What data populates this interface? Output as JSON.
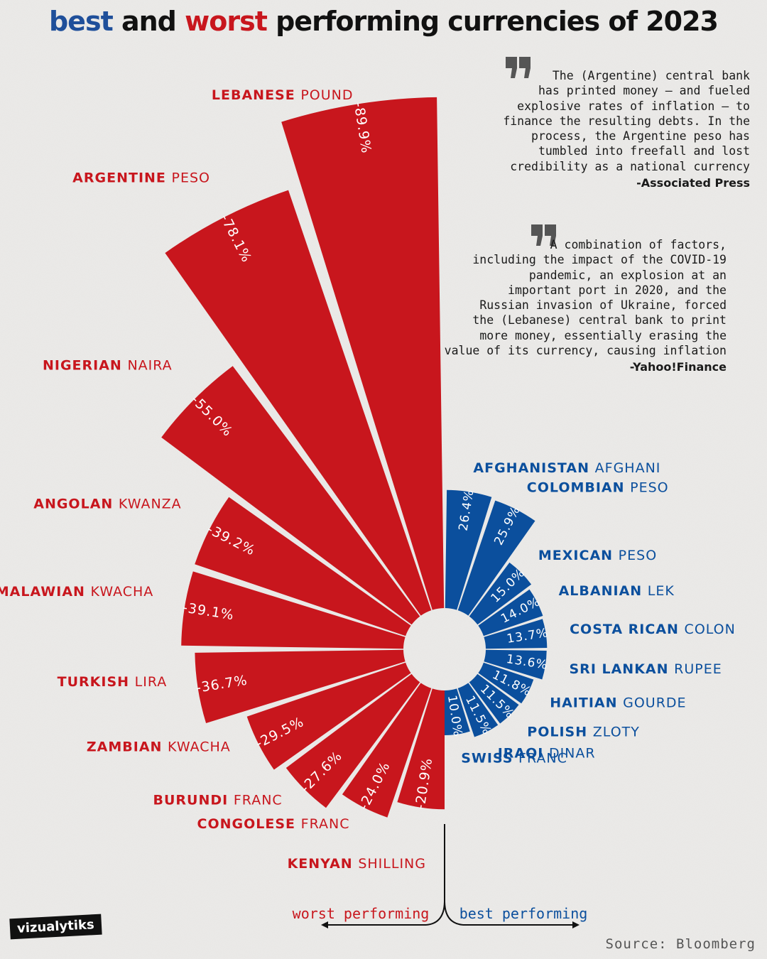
{
  "title": {
    "part_best": "best",
    "part_and": "and",
    "part_worst": "worst",
    "part_rest": "performing currencies of 2023"
  },
  "quotes": [
    {
      "lines": [
        "The (Argentine) central bank",
        "has printed money — and fueled",
        "explosive rates of inflation — to",
        "finance the resulting debts. In the",
        "process, the Argentine peso has",
        "tumbled into freefall and lost",
        "credibility as a national currency"
      ],
      "source": "-Associated Press"
    },
    {
      "lines": [
        "A combination of factors,",
        "including the impact of the COVID-19",
        "pandemic, an explosion at an",
        "important port in 2020, and the",
        "Russian invasion of Ukraine, forced",
        "the (Lebanese) central bank to print",
        "more money, essentially erasing the",
        "value of its currency, causing inflation"
      ],
      "source": "-Yahoo!Finance"
    }
  ],
  "axis_labels": {
    "worst": "worst performing",
    "best": "best performing"
  },
  "source": "Source: Bloomberg",
  "brand": "vizualytiks",
  "colors": {
    "worst": "#c8161d",
    "best": "#0b4f9d",
    "title_best": "#1f4f9a",
    "title_worst": "#c8161d",
    "background": "#ecebe9"
  },
  "chart_data": {
    "type": "bar",
    "style": "radial-semicircle",
    "unit": "%",
    "worst": [
      {
        "country": "LEBANESE",
        "currency": "POUND",
        "value": -89.9
      },
      {
        "country": "ARGENTINE",
        "currency": "PESO",
        "value": -78.1
      },
      {
        "country": "NIGERIAN",
        "currency": "NAIRA",
        "value": -55.0
      },
      {
        "country": "ANGOLAN",
        "currency": "KWANZA",
        "value": -39.2
      },
      {
        "country": "MALAWIAN",
        "currency": "KWACHA",
        "value": -39.1
      },
      {
        "country": "TURKISH",
        "currency": "LIRA",
        "value": -36.7
      },
      {
        "country": "ZAMBIAN",
        "currency": "KWACHA",
        "value": -29.5
      },
      {
        "country": "BURUNDI",
        "currency": "FRANC",
        "value": -27.6
      },
      {
        "country": "CONGOLESE",
        "currency": "FRANC",
        "value": -24.0
      },
      {
        "country": "KENYAN",
        "currency": "SHILLING",
        "value": -20.9
      }
    ],
    "best": [
      {
        "country": "AFGHANISTAN",
        "currency": "AFGHANI",
        "value": 26.4
      },
      {
        "country": "COLOMBIAN",
        "currency": "PESO",
        "value": 25.9
      },
      {
        "country": "MEXICAN",
        "currency": "PESO",
        "value": 15.0
      },
      {
        "country": "ALBANIAN",
        "currency": "LEK",
        "value": 14.0
      },
      {
        "country": "COSTA RICAN",
        "currency": "COLON",
        "value": 13.7
      },
      {
        "country": "SRI LANKAN",
        "currency": "RUPEE",
        "value": 13.6
      },
      {
        "country": "HAITIAN",
        "currency": "GOURDE",
        "value": 11.8
      },
      {
        "country": "POLISH",
        "currency": "ZLOTY",
        "value": 11.5
      },
      {
        "country": "IRAQI",
        "currency": "DINAR",
        "value": 11.5
      },
      {
        "country": "SWISS",
        "currency": "FRANC",
        "value": 10.0
      }
    ]
  }
}
